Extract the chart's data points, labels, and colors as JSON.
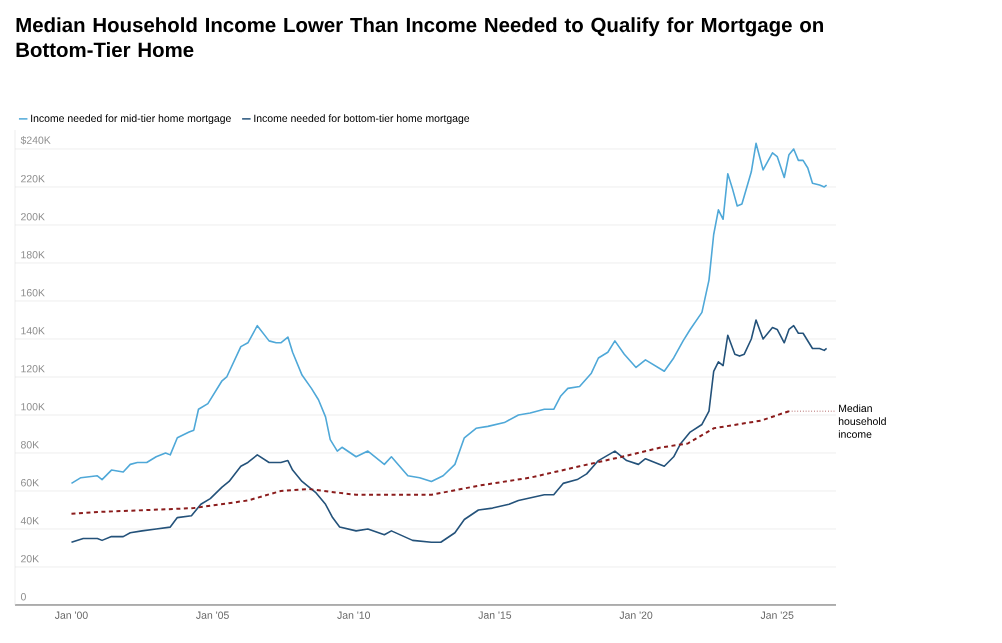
{
  "chart_data": {
    "type": "line",
    "title": "Median Household Income Lower Than Income Needed to Qualify for Mortgage on Bottom-Tier Home",
    "xlim": [
      "1998-01",
      "2027-02"
    ],
    "xticks": [
      {
        "value": "2000-01",
        "label": "Jan '00"
      },
      {
        "value": "2005-01",
        "label": "Jan '05"
      },
      {
        "value": "2010-01",
        "label": "Jan '10"
      },
      {
        "value": "2015-01",
        "label": "Jan '15"
      },
      {
        "value": "2020-01",
        "label": "Jan '20"
      },
      {
        "value": "2025-01",
        "label": "Jan '25"
      }
    ],
    "ylim": [
      0,
      250
    ],
    "yticks": [
      0,
      {
        "value": 20,
        "label": "20K"
      },
      {
        "value": 40,
        "label": "40K"
      },
      {
        "value": 60,
        "label": "60K"
      },
      {
        "value": 80,
        "label": "80K"
      },
      {
        "value": 100,
        "label": "100K"
      },
      {
        "value": 120,
        "label": "120K"
      },
      {
        "value": 140,
        "label": "140K"
      },
      {
        "value": 160,
        "label": "160K"
      },
      {
        "value": 180,
        "label": "180K"
      },
      {
        "value": 200,
        "label": "200K"
      },
      {
        "value": 220,
        "label": "220K"
      },
      {
        "value": 240,
        "label": "$240K"
      }
    ],
    "grid": "y",
    "legend": "top left",
    "series": [
      {
        "name": "Income needed for mid-tier home mortgage",
        "color": "#4fa8d8",
        "line_style": "solid",
        "x": [
          "2000-01",
          "2000-05",
          "2000-12",
          "2001-02",
          "2001-06",
          "2001-11",
          "2002-02",
          "2002-05",
          "2002-09",
          "2003-01",
          "2003-05",
          "2003-07",
          "2003-10",
          "2004-03",
          "2004-05",
          "2004-07",
          "2004-11",
          "2005-05",
          "2005-07",
          "2006-01",
          "2006-04",
          "2006-08",
          "2007-01",
          "2007-04",
          "2007-06",
          "2007-09",
          "2007-11",
          "2008-03",
          "2008-07",
          "2008-10",
          "2009-01",
          "2009-03",
          "2009-06",
          "2009-08",
          "2010-02",
          "2010-07",
          "2011-02",
          "2011-05",
          "2011-12",
          "2012-05",
          "2012-10",
          "2013-03",
          "2013-08",
          "2013-12",
          "2014-05",
          "2014-10",
          "2015-05",
          "2015-11",
          "2016-04",
          "2016-10",
          "2017-02",
          "2017-05",
          "2017-08",
          "2018-01",
          "2018-06",
          "2018-09",
          "2019-01",
          "2019-04",
          "2019-08",
          "2020-01",
          "2020-05",
          "2020-09",
          "2021-01",
          "2021-05",
          "2021-09",
          "2021-12",
          "2022-05",
          "2022-08",
          "2022-10",
          "2022-12",
          "2023-02",
          "2023-04",
          "2023-06",
          "2023-08",
          "2023-10",
          "2024-02",
          "2024-04",
          "2024-07",
          "2024-11",
          "2025-01",
          "2025-04",
          "2025-06",
          "2025-08",
          "2025-10",
          "2025-12",
          "2026-02",
          "2026-04",
          "2026-07",
          "2026-09",
          "2026-10"
        ],
        "values": [
          64,
          67,
          68,
          66,
          71,
          70,
          74,
          75,
          75,
          78,
          80,
          79,
          88,
          91,
          92,
          103,
          106,
          118,
          120,
          136,
          138,
          147,
          139,
          138,
          138,
          141,
          133,
          121,
          114,
          108,
          99,
          87,
          81,
          83,
          78,
          81,
          74,
          78,
          68,
          67,
          65,
          68,
          74,
          88,
          93,
          94,
          96,
          100,
          101,
          103,
          103,
          110,
          114,
          115,
          122,
          130,
          133,
          139,
          132,
          125,
          129,
          126,
          123,
          130,
          139,
          145,
          154,
          171,
          195,
          208,
          203,
          227,
          219,
          210,
          211,
          228,
          243,
          229,
          238,
          236,
          225,
          237,
          240,
          234,
          234,
          230,
          222,
          221,
          220,
          221
        ]
      },
      {
        "name": "Income needed for bottom-tier home mortgage",
        "color": "#24527a",
        "line_style": "solid",
        "x": [
          "2000-01",
          "2000-06",
          "2000-12",
          "2001-02",
          "2001-06",
          "2001-11",
          "2002-02",
          "2002-07",
          "2003-01",
          "2003-07",
          "2003-10",
          "2004-04",
          "2004-08",
          "2004-12",
          "2005-05",
          "2005-08",
          "2006-01",
          "2006-04",
          "2006-08",
          "2007-01",
          "2007-06",
          "2007-09",
          "2007-11",
          "2008-03",
          "2008-09",
          "2009-01",
          "2009-04",
          "2009-07",
          "2010-02",
          "2010-07",
          "2011-02",
          "2011-05",
          "2012-02",
          "2012-10",
          "2013-02",
          "2013-08",
          "2013-12",
          "2014-06",
          "2014-12",
          "2015-07",
          "2015-11",
          "2016-10",
          "2017-02",
          "2017-06",
          "2017-12",
          "2018-04",
          "2018-09",
          "2019-04",
          "2019-09",
          "2020-02",
          "2020-05",
          "2020-09",
          "2021-01",
          "2021-05",
          "2021-08",
          "2021-12",
          "2022-05",
          "2022-08",
          "2022-10",
          "2022-12",
          "2023-02",
          "2023-04",
          "2023-07",
          "2023-09",
          "2023-11",
          "2024-02",
          "2024-04",
          "2024-07",
          "2024-11",
          "2025-01",
          "2025-04",
          "2025-06",
          "2025-08",
          "2025-10",
          "2025-12",
          "2026-02",
          "2026-04",
          "2026-07",
          "2026-09",
          "2026-10"
        ],
        "values": [
          33,
          35,
          35,
          34,
          36,
          36,
          38,
          39,
          40,
          41,
          46,
          47,
          53,
          56,
          62,
          65,
          73,
          75,
          79,
          75,
          75,
          76,
          71,
          65,
          59,
          53,
          46,
          41,
          39,
          40,
          37,
          39,
          34,
          33,
          33,
          38,
          45,
          50,
          51,
          53,
          55,
          58,
          58,
          64,
          66,
          69,
          76,
          81,
          76,
          74,
          77,
          75,
          73,
          78,
          85,
          91,
          95,
          102,
          123,
          128,
          126,
          142,
          132,
          131,
          132,
          140,
          150,
          140,
          146,
          145,
          138,
          145,
          147,
          143,
          143,
          139,
          135,
          135,
          134,
          135
        ]
      },
      {
        "name": "Median household income",
        "color": "#8b1c1c",
        "line_style": "dashed",
        "x": [
          "2000-01",
          "2001-01",
          "2002-10",
          "2004-05",
          "2006-04",
          "2007-06",
          "2008-06",
          "2009-07",
          "2010-02",
          "2012-10",
          "2014-07",
          "2016-04",
          "2018-01",
          "2019-07",
          "2020-12",
          "2021-11",
          "2022-10",
          "2024-06",
          "2025-06"
        ],
        "values": [
          48,
          49,
          50,
          51,
          55,
          60,
          61,
          59,
          58,
          58,
          63,
          67,
          73,
          78,
          83,
          85,
          93,
          97,
          102
        ]
      }
    ]
  }
}
